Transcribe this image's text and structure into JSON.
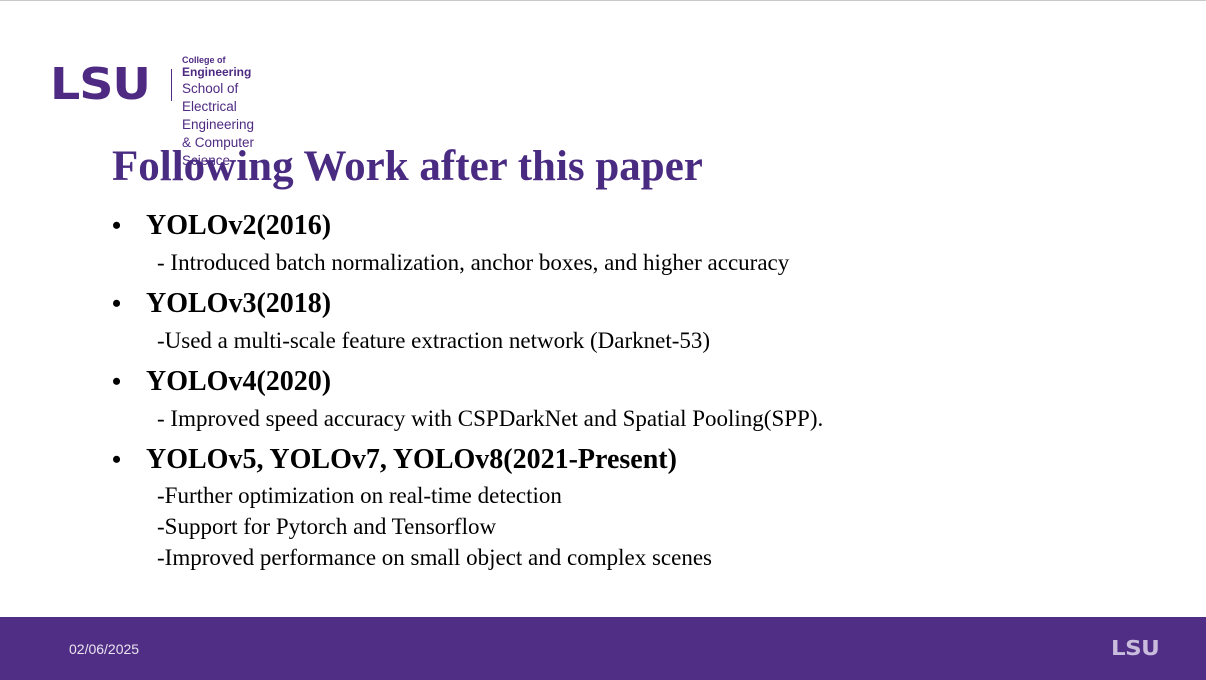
{
  "logo": {
    "mark": "LSU",
    "college": "College of",
    "engineering": "Engineering",
    "school_line1": "School of Electrical Engineering",
    "school_line2": "& Computer Science"
  },
  "title": "Following Work after this paper",
  "items": [
    {
      "heading": "YOLOv2(2016)",
      "details": [
        "- Introduced batch normalization, anchor boxes, and higher accuracy"
      ]
    },
    {
      "heading": "YOLOv3(2018)",
      "details": [
        "-Used a multi-scale feature extraction network (Darknet-53)"
      ]
    },
    {
      "heading": "YOLOv4(2020)",
      "details": [
        "- Improved speed accuracy with CSPDarkNet and Spatial Pooling(SPP)."
      ]
    },
    {
      "heading": "YOLOv5, YOLOv7, YOLOv8(2021-Present)",
      "details": [
        "-Further optimization on real-time detection",
        "-Support for Pytorch and Tensorflow",
        "-Improved performance on small object and complex scenes"
      ]
    }
  ],
  "footer": {
    "date": "02/06/2025",
    "logo": "LSU"
  },
  "colors": {
    "brand_purple": "#512e85",
    "title_purple": "#4a2b82"
  }
}
